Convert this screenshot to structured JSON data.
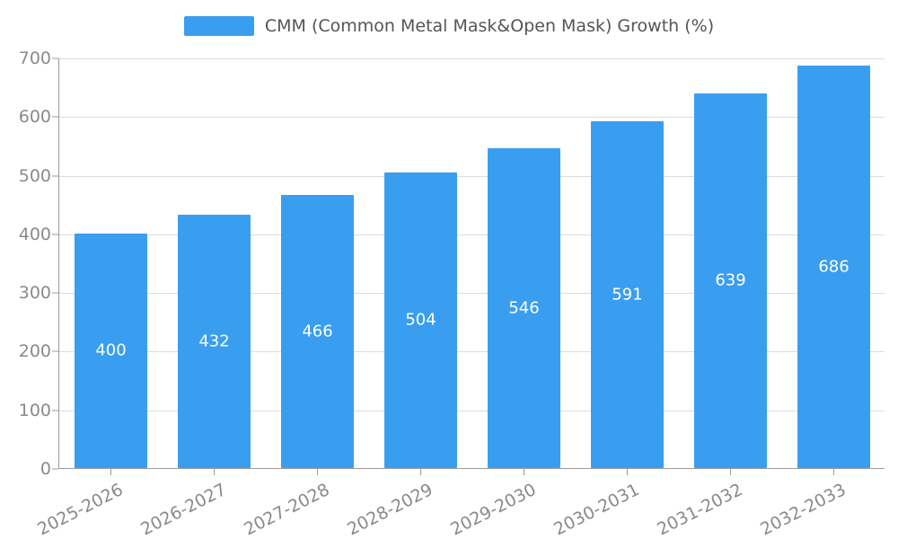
{
  "chart_data": {
    "type": "bar",
    "title": "CMM (Common Metal Mask&Open Mask) Growth (%)",
    "categories": [
      "2025-2026",
      "2026-2027",
      "2027-2028",
      "2028-2029",
      "2029-2030",
      "2030-2031",
      "2031-2032",
      "2032-2033"
    ],
    "values": [
      400,
      432,
      466,
      504,
      546,
      591,
      639,
      686
    ],
    "xlabel": "",
    "ylabel": "",
    "ylim": [
      0,
      700
    ],
    "yticks": [
      0,
      100,
      200,
      300,
      400,
      500,
      600,
      700
    ],
    "grid": true,
    "legend_position": "top-center",
    "bar_color": "#3a9ef0",
    "value_label_color": "#ffffff",
    "tick_label_color": "#8a8a8a",
    "title_color": "#555555"
  }
}
